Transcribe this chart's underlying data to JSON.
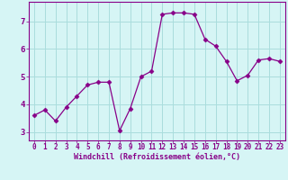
{
  "x": [
    0,
    1,
    2,
    3,
    4,
    5,
    6,
    7,
    8,
    9,
    10,
    11,
    12,
    13,
    14,
    15,
    16,
    17,
    18,
    19,
    20,
    21,
    22,
    23
  ],
  "y": [
    3.6,
    3.8,
    3.4,
    3.9,
    4.3,
    4.7,
    4.8,
    4.8,
    3.05,
    3.85,
    5.0,
    5.2,
    7.25,
    7.3,
    7.3,
    7.25,
    6.35,
    6.1,
    5.55,
    4.85,
    5.05,
    5.6,
    5.65,
    5.55
  ],
  "xlim": [
    -0.5,
    23.5
  ],
  "ylim": [
    2.7,
    7.7
  ],
  "yticks": [
    3,
    4,
    5,
    6,
    7
  ],
  "xticks": [
    0,
    1,
    2,
    3,
    4,
    5,
    6,
    7,
    8,
    9,
    10,
    11,
    12,
    13,
    14,
    15,
    16,
    17,
    18,
    19,
    20,
    21,
    22,
    23
  ],
  "xlabel": "Windchill (Refroidissement éolien,°C)",
  "line_color": "#880088",
  "marker": "D",
  "marker_size": 2.5,
  "bg_color": "#d6f5f5",
  "grid_color": "#aadddd",
  "spine_color": "#880088",
  "tick_color": "#880088",
  "label_color": "#880088",
  "tick_fontsize": 5.5,
  "label_fontsize": 6.0
}
